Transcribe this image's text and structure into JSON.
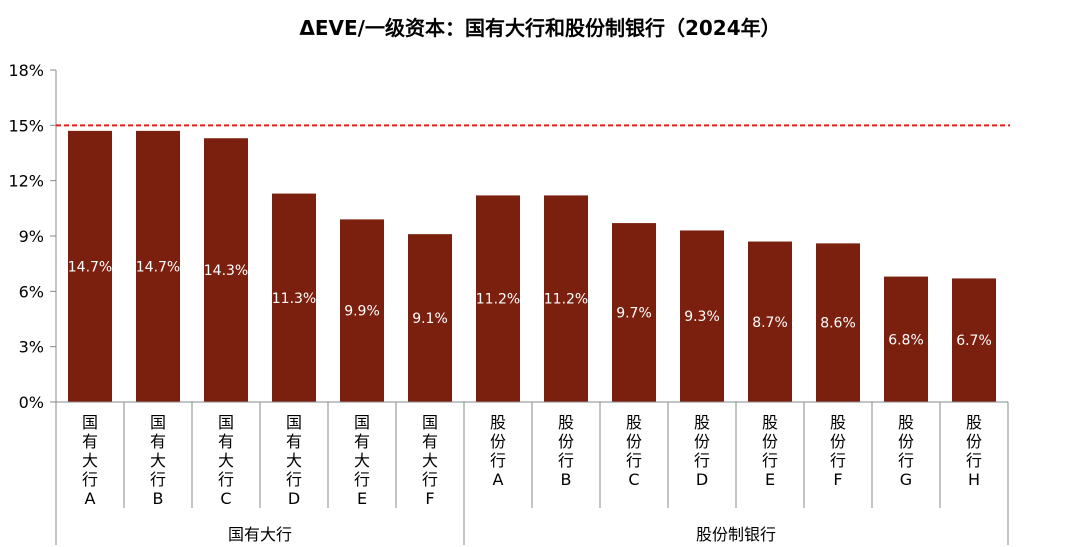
{
  "chart_data": {
    "type": "bar",
    "title": "ΔEVE/一级资本：国有大行和股份制银行（2024年）",
    "categories": [
      "国有大行A",
      "国有大行B",
      "国有大行C",
      "国有大行D",
      "国有大行E",
      "国有大行F",
      "股份行A",
      "股份行B",
      "股份行C",
      "股份行D",
      "股份行E",
      "股份行F",
      "股份行G",
      "股份行H"
    ],
    "values": [
      14.7,
      14.7,
      14.3,
      11.3,
      9.9,
      9.1,
      11.2,
      11.2,
      9.7,
      9.3,
      8.7,
      8.6,
      6.8,
      6.7
    ],
    "data_labels": [
      "14.7%",
      "14.7%",
      "14.3%",
      "11.3%",
      "9.9%",
      "9.1%",
      "11.2%",
      "11.2%",
      "9.7%",
      "9.3%",
      "8.7%",
      "8.6%",
      "6.8%",
      "6.7%"
    ],
    "groups": [
      {
        "label": "国有大行",
        "count": 6
      },
      {
        "label": "股份制银行",
        "count": 8
      }
    ],
    "y_ticks": [
      0,
      3,
      6,
      9,
      12,
      15,
      18
    ],
    "y_tick_labels": [
      "0%",
      "3%",
      "6%",
      "9%",
      "12%",
      "15%",
      "18%"
    ],
    "ylim": [
      0,
      18
    ],
    "reference_line": {
      "value": 15,
      "style": "dashed",
      "color": "#e0201b"
    },
    "bar_color": "#7b1f0e",
    "xlabel": "",
    "ylabel": "",
    "grid": false
  }
}
